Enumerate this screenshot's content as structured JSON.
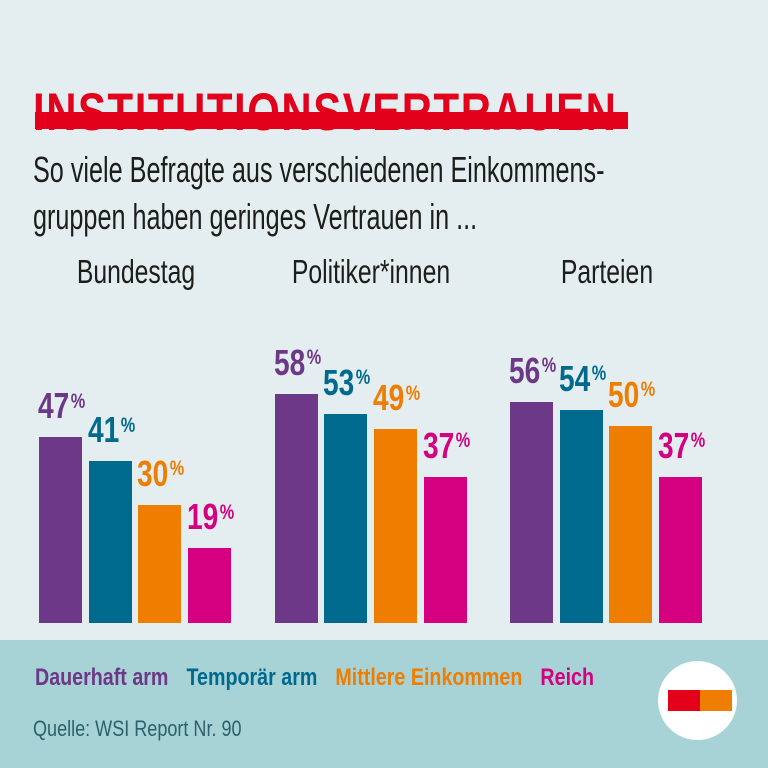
{
  "header": {
    "title": "INSTITUTIONSVERTRAUEN",
    "subtitle_line1": "So viele Befragte aus verschiedenen Einkommens-",
    "subtitle_line2": "gruppen haben geringes Vertrauen in ..."
  },
  "chart_data": {
    "type": "bar",
    "unit": "%",
    "value_suffix": "%",
    "categories": [
      "Bundestag",
      "Politiker*innen",
      "Parteien"
    ],
    "series": [
      {
        "name": "Dauerhaft arm",
        "color": "#6d3887",
        "values": [
          47,
          58,
          56
        ]
      },
      {
        "name": "Temporär arm",
        "color": "#006a8e",
        "values": [
          41,
          53,
          54
        ]
      },
      {
        "name": "Mittlere Einkommen",
        "color": "#ee7d00",
        "values": [
          30,
          49,
          50
        ]
      },
      {
        "name": "Reich",
        "color": "#d4007f",
        "values": [
          19,
          37,
          37
        ]
      }
    ],
    "value_labels": true,
    "axes_hidden": true,
    "legend_position": "bottom",
    "ylim": [
      0,
      62
    ]
  },
  "source": "Quelle: WSI Report Nr. 90",
  "colors": {
    "background": "#e4eef0",
    "accent_red": "#e2001a",
    "band": "#a8d3d6",
    "text": "#1d1d1b",
    "source_text": "#2b616c"
  },
  "logo": {
    "name": "publisher-logo",
    "left_color": "#e2001a",
    "right_color": "#ee7d00"
  }
}
